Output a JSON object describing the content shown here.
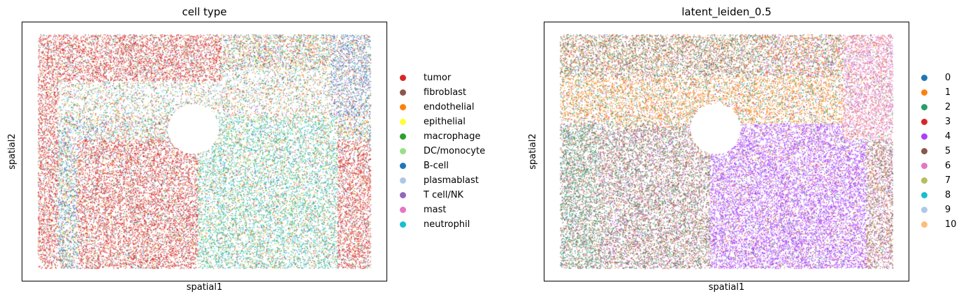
{
  "chart_data": [
    {
      "type": "scatter",
      "title": "cell type",
      "xlabel": "spatial1",
      "ylabel": "spatial2",
      "ticks_shown": false,
      "legend_position": "right",
      "categories": [
        {
          "name": "tumor",
          "color": "#d62728"
        },
        {
          "name": "fibroblast",
          "color": "#8c564b"
        },
        {
          "name": "endothelial",
          "color": "#ff7f0e"
        },
        {
          "name": "epithelial",
          "color": "#ffff33"
        },
        {
          "name": "macrophage",
          "color": "#2ca02c"
        },
        {
          "name": "DC/monocyte",
          "color": "#98df8a"
        },
        {
          "name": "B-cell",
          "color": "#1f77b4"
        },
        {
          "name": "plasmablast",
          "color": "#aec7e8"
        },
        {
          "name": "T cell/NK",
          "color": "#9467bd"
        },
        {
          "name": "mast",
          "color": "#e377c2"
        },
        {
          "name": "neutrophil",
          "color": "#17becf"
        }
      ]
    },
    {
      "type": "scatter",
      "title": "latent_leiden_0.5",
      "xlabel": "spatial1",
      "ylabel": "spatial2",
      "ticks_shown": false,
      "legend_position": "right",
      "categories": [
        {
          "name": "0",
          "color": "#1f77b4"
        },
        {
          "name": "1",
          "color": "#ff7f0e"
        },
        {
          "name": "2",
          "color": "#279e68"
        },
        {
          "name": "3",
          "color": "#d62728"
        },
        {
          "name": "4",
          "color": "#aa40fc"
        },
        {
          "name": "5",
          "color": "#8c564b"
        },
        {
          "name": "6",
          "color": "#e377c2"
        },
        {
          "name": "7",
          "color": "#b5bd61"
        },
        {
          "name": "8",
          "color": "#17becf"
        },
        {
          "name": "9",
          "color": "#aec7e8"
        },
        {
          "name": "10",
          "color": "#ffbb78"
        }
      ]
    }
  ]
}
